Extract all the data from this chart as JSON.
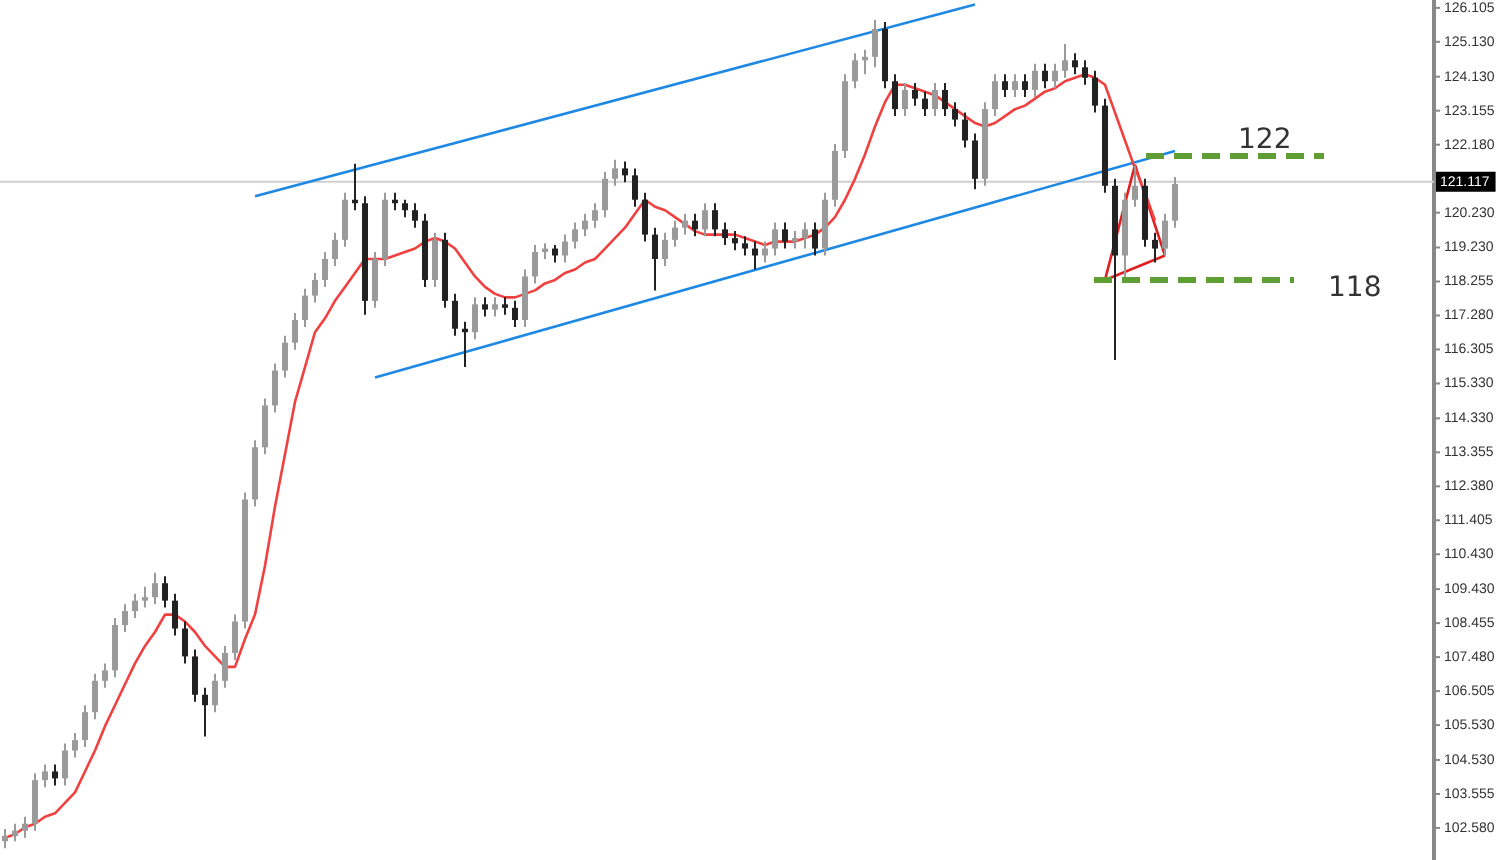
{
  "chart_data": {
    "type": "candlestick",
    "tick_labels": "y",
    "grid": false,
    "categories": [
      null,
      null,
      null,
      null,
      null,
      null,
      null,
      null,
      null,
      null,
      null,
      null,
      null,
      null,
      null,
      null,
      null,
      null,
      null,
      null,
      null,
      null,
      null,
      null,
      null,
      null,
      null,
      null,
      null,
      null,
      null,
      null,
      null,
      null,
      null,
      null,
      null,
      null,
      null,
      null,
      null,
      null,
      null,
      null,
      null,
      null,
      null,
      null,
      null,
      null,
      null,
      null,
      null,
      null,
      null,
      null,
      null,
      null,
      null,
      null,
      null,
      null,
      null,
      null,
      null,
      null,
      null,
      null,
      null,
      null,
      null,
      null,
      null,
      null,
      null,
      null,
      null,
      null,
      null,
      null,
      null,
      null,
      null,
      null,
      null,
      null,
      null,
      null,
      null,
      null,
      null,
      null,
      null,
      null,
      null,
      null,
      null,
      null,
      null,
      null,
      null,
      null,
      null,
      null,
      null,
      null,
      null,
      null,
      null,
      null,
      null,
      null,
      null,
      null,
      null,
      null,
      null,
      null
    ],
    "ohlc": [
      [
        102.2,
        102.55,
        102.0,
        102.35
      ],
      [
        102.35,
        102.7,
        102.2,
        102.5
      ],
      [
        102.5,
        102.9,
        102.3,
        102.7
      ],
      [
        102.7,
        104.15,
        102.5,
        103.95
      ],
      [
        103.95,
        104.4,
        103.75,
        104.2
      ],
      [
        104.2,
        104.4,
        103.8,
        104.0
      ],
      [
        104.0,
        105.0,
        103.8,
        104.8
      ],
      [
        104.8,
        105.3,
        104.6,
        105.1
      ],
      [
        105.1,
        106.1,
        104.9,
        105.9
      ],
      [
        105.9,
        107.0,
        105.7,
        106.8
      ],
      [
        106.8,
        107.3,
        106.6,
        107.1
      ],
      [
        107.1,
        108.6,
        106.9,
        108.4
      ],
      [
        108.4,
        109.0,
        108.2,
        108.8
      ],
      [
        108.8,
        109.3,
        108.6,
        109.1
      ],
      [
        109.1,
        109.5,
        108.9,
        109.2
      ],
      [
        109.2,
        109.9,
        109.0,
        109.6
      ],
      [
        109.6,
        109.8,
        108.9,
        109.1
      ],
      [
        109.1,
        109.3,
        108.1,
        108.3
      ],
      [
        108.3,
        108.5,
        107.3,
        107.5
      ],
      [
        107.5,
        107.7,
        106.2,
        106.4
      ],
      [
        106.4,
        106.6,
        105.2,
        106.1
      ],
      [
        106.1,
        107.0,
        105.9,
        106.8
      ],
      [
        106.8,
        107.8,
        106.6,
        107.6
      ],
      [
        107.6,
        108.7,
        107.4,
        108.5
      ],
      [
        108.5,
        112.2,
        108.3,
        112.0
      ],
      [
        112.0,
        113.7,
        111.8,
        113.5
      ],
      [
        113.5,
        114.9,
        113.3,
        114.7
      ],
      [
        114.7,
        115.9,
        114.5,
        115.7
      ],
      [
        115.7,
        116.7,
        115.5,
        116.5
      ],
      [
        116.5,
        117.35,
        116.3,
        117.15
      ],
      [
        117.15,
        118.05,
        116.95,
        117.85
      ],
      [
        117.85,
        118.5,
        117.65,
        118.3
      ],
      [
        118.3,
        119.1,
        118.1,
        118.9
      ],
      [
        118.9,
        119.65,
        118.7,
        119.45
      ],
      [
        119.45,
        120.8,
        119.25,
        120.6
      ],
      [
        120.6,
        121.63,
        120.3,
        120.5
      ],
      [
        120.5,
        120.7,
        117.3,
        117.7
      ],
      [
        117.7,
        119.1,
        117.5,
        118.9
      ],
      [
        118.9,
        120.8,
        118.7,
        120.6
      ],
      [
        120.6,
        120.8,
        120.3,
        120.5
      ],
      [
        120.5,
        120.6,
        120.1,
        120.3
      ],
      [
        120.3,
        120.5,
        119.8,
        120.0
      ],
      [
        120.0,
        120.2,
        118.1,
        118.3
      ],
      [
        118.3,
        119.65,
        118.1,
        119.45
      ],
      [
        119.45,
        119.65,
        117.5,
        117.7
      ],
      [
        117.7,
        117.9,
        116.7,
        116.9
      ],
      [
        116.9,
        117.1,
        115.8,
        116.8
      ],
      [
        116.8,
        117.8,
        116.6,
        117.6
      ],
      [
        117.6,
        117.8,
        117.25,
        117.45
      ],
      [
        117.45,
        117.8,
        117.25,
        117.6
      ],
      [
        117.6,
        117.8,
        117.3,
        117.5
      ],
      [
        117.5,
        117.7,
        116.95,
        117.15
      ],
      [
        117.15,
        118.6,
        116.95,
        118.4
      ],
      [
        118.4,
        119.3,
        118.2,
        119.1
      ],
      [
        119.1,
        119.35,
        118.9,
        119.2
      ],
      [
        119.2,
        119.3,
        118.8,
        119.0
      ],
      [
        119.0,
        119.6,
        118.8,
        119.4
      ],
      [
        119.4,
        119.95,
        119.2,
        119.75
      ],
      [
        119.75,
        120.2,
        119.55,
        120.0
      ],
      [
        120.0,
        120.5,
        119.8,
        120.3
      ],
      [
        120.3,
        121.4,
        120.1,
        121.2
      ],
      [
        121.2,
        121.75,
        121.0,
        121.5
      ],
      [
        121.5,
        121.7,
        121.1,
        121.3
      ],
      [
        121.3,
        121.5,
        120.4,
        120.6
      ],
      [
        120.6,
        120.8,
        119.4,
        119.6
      ],
      [
        119.6,
        119.8,
        118.0,
        118.9
      ],
      [
        118.9,
        119.65,
        118.7,
        119.45
      ],
      [
        119.45,
        120.0,
        119.25,
        119.8
      ],
      [
        119.8,
        120.2,
        119.6,
        120.0
      ],
      [
        120.0,
        120.2,
        119.55,
        119.75
      ],
      [
        119.75,
        120.5,
        119.55,
        120.3
      ],
      [
        120.3,
        120.5,
        119.55,
        119.75
      ],
      [
        119.75,
        119.95,
        119.3,
        119.5
      ],
      [
        119.5,
        119.7,
        119.15,
        119.35
      ],
      [
        119.35,
        119.55,
        119.0,
        119.2
      ],
      [
        119.2,
        119.4,
        118.6,
        119.0
      ],
      [
        119.0,
        119.4,
        118.8,
        119.2
      ],
      [
        119.2,
        119.95,
        119.0,
        119.75
      ],
      [
        119.75,
        119.95,
        119.2,
        119.4
      ],
      [
        119.4,
        119.7,
        119.2,
        119.5
      ],
      [
        119.5,
        119.95,
        119.2,
        119.75
      ],
      [
        119.75,
        119.95,
        119.0,
        119.2
      ],
      [
        119.2,
        120.8,
        119.0,
        120.6
      ],
      [
        120.6,
        122.2,
        120.4,
        122.0
      ],
      [
        122.0,
        124.2,
        121.8,
        124.0
      ],
      [
        124.0,
        124.8,
        123.8,
        124.6
      ],
      [
        124.6,
        124.9,
        124.2,
        124.7
      ],
      [
        124.7,
        125.76,
        124.4,
        125.5
      ],
      [
        125.5,
        125.7,
        123.8,
        124.0
      ],
      [
        124.0,
        124.2,
        123.0,
        123.2
      ],
      [
        123.2,
        123.95,
        123.0,
        123.75
      ],
      [
        123.75,
        123.95,
        123.3,
        123.5
      ],
      [
        123.5,
        123.7,
        123.0,
        123.2
      ],
      [
        123.2,
        123.95,
        123.0,
        123.75
      ],
      [
        123.75,
        123.95,
        123.0,
        123.2
      ],
      [
        123.2,
        123.4,
        122.7,
        122.9
      ],
      [
        122.9,
        123.1,
        122.1,
        122.3
      ],
      [
        122.3,
        122.5,
        120.9,
        121.2
      ],
      [
        121.2,
        123.4,
        121.0,
        123.2
      ],
      [
        123.2,
        124.2,
        123.0,
        124.0
      ],
      [
        124.0,
        124.2,
        123.55,
        123.75
      ],
      [
        123.75,
        124.2,
        123.55,
        124.0
      ],
      [
        124.0,
        124.2,
        123.55,
        123.75
      ],
      [
        123.75,
        124.5,
        123.55,
        124.3
      ],
      [
        124.3,
        124.5,
        123.8,
        124.0
      ],
      [
        124.0,
        124.5,
        123.8,
        124.3
      ],
      [
        124.3,
        125.07,
        124.1,
        124.6
      ],
      [
        124.6,
        124.8,
        124.2,
        124.4
      ],
      [
        124.4,
        124.6,
        123.9,
        124.1
      ],
      [
        124.1,
        124.3,
        123.1,
        123.3
      ],
      [
        123.3,
        123.5,
        120.8,
        121.0
      ],
      [
        121.0,
        121.2,
        116.0,
        119.0
      ],
      [
        119.0,
        120.8,
        118.3,
        120.6
      ],
      [
        120.6,
        121.57,
        120.4,
        121.0
      ],
      [
        121.0,
        121.2,
        119.25,
        119.45
      ],
      [
        119.45,
        119.65,
        118.8,
        119.2
      ],
      [
        119.2,
        120.2,
        119.0,
        120.0
      ],
      [
        120.0,
        121.25,
        119.8,
        121.05
      ]
    ],
    "colors": [
      "#9a9a9a",
      "#9a9a9a",
      "#9a9a9a",
      "#9a9a9a",
      "#9a9a9a",
      "#222222",
      "#9a9a9a",
      "#9a9a9a",
      "#9a9a9a",
      "#9a9a9a",
      "#9a9a9a",
      "#9a9a9a",
      "#9a9a9a",
      "#9a9a9a",
      "#9a9a9a",
      "#9a9a9a",
      "#222222",
      "#222222",
      "#222222",
      "#222222",
      "#222222",
      "#9a9a9a",
      "#9a9a9a",
      "#9a9a9a",
      "#9a9a9a",
      "#9a9a9a",
      "#9a9a9a",
      "#9a9a9a",
      "#9a9a9a",
      "#9a9a9a",
      "#9a9a9a",
      "#9a9a9a",
      "#9a9a9a",
      "#9a9a9a",
      "#9a9a9a",
      "#222222",
      "#222222",
      "#9a9a9a",
      "#9a9a9a",
      "#222222",
      "#222222",
      "#222222",
      "#222222",
      "#9a9a9a",
      "#222222",
      "#222222",
      "#222222",
      "#9a9a9a",
      "#222222",
      "#9a9a9a",
      "#222222",
      "#222222",
      "#9a9a9a",
      "#9a9a9a",
      "#9a9a9a",
      "#222222",
      "#9a9a9a",
      "#9a9a9a",
      "#9a9a9a",
      "#9a9a9a",
      "#9a9a9a",
      "#9a9a9a",
      "#222222",
      "#222222",
      "#222222",
      "#222222",
      "#9a9a9a",
      "#9a9a9a",
      "#9a9a9a",
      "#222222",
      "#9a9a9a",
      "#222222",
      "#222222",
      "#222222",
      "#222222",
      "#222222",
      "#9a9a9a",
      "#9a9a9a",
      "#222222",
      "#9a9a9a",
      "#9a9a9a",
      "#222222",
      "#9a9a9a",
      "#9a9a9a",
      "#9a9a9a",
      "#9a9a9a",
      "#9a9a9a",
      "#9a9a9a",
      "#222222",
      "#222222",
      "#9a9a9a",
      "#222222",
      "#222222",
      "#9a9a9a",
      "#222222",
      "#222222",
      "#222222",
      "#222222",
      "#9a9a9a",
      "#9a9a9a",
      "#222222",
      "#9a9a9a",
      "#222222",
      "#9a9a9a",
      "#222222",
      "#9a9a9a",
      "#9a9a9a",
      "#222222",
      "#222222",
      "#222222",
      "#222222",
      "#222222",
      "#9a9a9a",
      "#9a9a9a",
      "#222222",
      "#222222",
      "#9a9a9a",
      "#9a9a9a"
    ],
    "ylim": [
      101.66,
      126.33
    ],
    "yticks": [
      {
        "value": 102.58,
        "label": "102.580"
      },
      {
        "value": 103.555,
        "label": "103.555"
      },
      {
        "value": 104.53,
        "label": "104.530"
      },
      {
        "value": 105.53,
        "label": "105.530"
      },
      {
        "value": 106.505,
        "label": "106.505"
      },
      {
        "value": 107.48,
        "label": "107.480"
      },
      {
        "value": 108.455,
        "label": "108.455"
      },
      {
        "value": 109.43,
        "label": "109.430"
      },
      {
        "value": 110.43,
        "label": "110.430"
      },
      {
        "value": 111.405,
        "label": "111.405"
      },
      {
        "value": 112.38,
        "label": "112.380"
      },
      {
        "value": 113.355,
        "label": "113.355"
      },
      {
        "value": 114.33,
        "label": "114.330"
      },
      {
        "value": 115.33,
        "label": "115.330"
      },
      {
        "value": 116.305,
        "label": "116.305"
      },
      {
        "value": 117.28,
        "label": "117.280"
      },
      {
        "value": 118.255,
        "label": "118.255"
      },
      {
        "value": 119.23,
        "label": "119.230"
      },
      {
        "value": 120.23,
        "label": "120.230"
      },
      {
        "value": 122.18,
        "label": "122.180"
      },
      {
        "value": 123.155,
        "label": "123.155"
      },
      {
        "value": 124.13,
        "label": "124.130"
      },
      {
        "value": 125.13,
        "label": "125.130"
      },
      {
        "value": 126.105,
        "label": "126.105"
      }
    ],
    "series": [
      {
        "type": "line",
        "color": "#f04040",
        "values": [
          102.3,
          102.4,
          102.6,
          102.7,
          102.9,
          103.0,
          103.3,
          103.6,
          104.2,
          104.8,
          105.5,
          106.1,
          106.7,
          107.3,
          107.8,
          108.2,
          108.7,
          108.7,
          108.5,
          108.2,
          107.8,
          107.5,
          107.2,
          107.2,
          108.0,
          108.7,
          110.1,
          111.8,
          113.3,
          114.8,
          115.8,
          116.8,
          117.2,
          117.7,
          118.1,
          118.5,
          118.9,
          118.9,
          118.9,
          119.0,
          119.1,
          119.2,
          119.4,
          119.5,
          119.4,
          119.2,
          118.8,
          118.4,
          118.1,
          117.9,
          117.8,
          117.8,
          117.9,
          118.0,
          118.2,
          118.3,
          118.5,
          118.6,
          118.8,
          118.9,
          119.2,
          119.5,
          119.8,
          120.2,
          120.6,
          120.4,
          120.3,
          120.1,
          119.9,
          119.7,
          119.6,
          119.6,
          119.6,
          119.6,
          119.5,
          119.4,
          119.3,
          119.4,
          119.4,
          119.4,
          119.5,
          119.6,
          119.8,
          120.1,
          120.6,
          121.2,
          121.9,
          122.7,
          123.4,
          123.9,
          123.9,
          123.8,
          123.7,
          123.6,
          123.4,
          123.2,
          123.0,
          122.8,
          122.7,
          122.8,
          123.0,
          123.2,
          123.3,
          123.5,
          123.7,
          123.8,
          124.0,
          124.1,
          124.2,
          124.1,
          123.9,
          123.1,
          122.3,
          121.5,
          120.8,
          120.0,
          null,
          null
        ]
      },
      {
        "type": "line",
        "color": "#1e88e5",
        "values": [
          null,
          null,
          null,
          null,
          null,
          null,
          null,
          null,
          null,
          null,
          null,
          null,
          null,
          null,
          null,
          null,
          null,
          null,
          null,
          null,
          null,
          null,
          null,
          null,
          null,
          120.7,
          null,
          null,
          null,
          null,
          null,
          null,
          null,
          null,
          null,
          null,
          null,
          null,
          null,
          null,
          null,
          null,
          null,
          null,
          null,
          null,
          null,
          null,
          null,
          null,
          null,
          null,
          null,
          null,
          null,
          null,
          null,
          null,
          null,
          null,
          null,
          null,
          null,
          null,
          null,
          null,
          null,
          null,
          null,
          null,
          null,
          null,
          null,
          null,
          null,
          null,
          null,
          null,
          null,
          null,
          null,
          null,
          null,
          null,
          null,
          null,
          null,
          null,
          null,
          null,
          null,
          null,
          null,
          null,
          null,
          null,
          null,
          126.2,
          null,
          null,
          null,
          null,
          null,
          null,
          null,
          null,
          null,
          null,
          null,
          null,
          null,
          null,
          null,
          null,
          null,
          null,
          null,
          null
        ]
      },
      {
        "type": "line",
        "color": "#1e88e5",
        "values": [
          null,
          null,
          null,
          null,
          null,
          null,
          null,
          null,
          null,
          null,
          null,
          null,
          null,
          null,
          null,
          null,
          null,
          null,
          null,
          null,
          null,
          null,
          null,
          null,
          null,
          null,
          null,
          null,
          null,
          null,
          null,
          null,
          null,
          null,
          null,
          null,
          null,
          115.5,
          null,
          null,
          null,
          null,
          null,
          null,
          null,
          null,
          null,
          null,
          null,
          null,
          null,
          null,
          null,
          null,
          null,
          null,
          null,
          null,
          null,
          null,
          null,
          null,
          null,
          null,
          null,
          null,
          null,
          null,
          null,
          null,
          null,
          null,
          null,
          null,
          null,
          null,
          null,
          null,
          null,
          null,
          null,
          null,
          null,
          null,
          null,
          null,
          null,
          null,
          null,
          null,
          null,
          null,
          null,
          null,
          null,
          null,
          null,
          null,
          null,
          null,
          null,
          null,
          null,
          null,
          null,
          null,
          null,
          null,
          null,
          null,
          null,
          null,
          null,
          null,
          null,
          null,
          null,
          122.0
        ]
      },
      {
        "type": "line",
        "color": "#e02020",
        "values": [
          null,
          null,
          null,
          null,
          null,
          null,
          null,
          null,
          null,
          null,
          null,
          null,
          null,
          null,
          null,
          null,
          null,
          null,
          null,
          null,
          null,
          null,
          null,
          null,
          null,
          null,
          null,
          null,
          null,
          null,
          null,
          null,
          null,
          null,
          null,
          null,
          null,
          null,
          null,
          null,
          null,
          null,
          null,
          null,
          null,
          null,
          null,
          null,
          null,
          null,
          null,
          null,
          null,
          null,
          null,
          null,
          null,
          null,
          null,
          null,
          null,
          null,
          null,
          null,
          null,
          null,
          null,
          null,
          null,
          null,
          null,
          null,
          null,
          null,
          null,
          null,
          null,
          null,
          null,
          null,
          null,
          null,
          null,
          null,
          null,
          null,
          null,
          null,
          null,
          null,
          null,
          null,
          null,
          null,
          null,
          null,
          null,
          null,
          null,
          null,
          null,
          null,
          null,
          null,
          null,
          null,
          null,
          null,
          null,
          null,
          118.3,
          null,
          null,
          121.6,
          null,
          null,
          null,
          null
        ]
      },
      {
        "type": "line",
        "color": "#e02020",
        "values": [
          null,
          null,
          null,
          null,
          null,
          null,
          null,
          null,
          null,
          null,
          null,
          null,
          null,
          null,
          null,
          null,
          null,
          null,
          null,
          null,
          null,
          null,
          null,
          null,
          null,
          null,
          null,
          null,
          null,
          null,
          null,
          null,
          null,
          null,
          null,
          null,
          null,
          null,
          null,
          null,
          null,
          null,
          null,
          null,
          null,
          null,
          null,
          null,
          null,
          null,
          null,
          null,
          null,
          null,
          null,
          null,
          null,
          null,
          null,
          null,
          null,
          null,
          null,
          null,
          null,
          null,
          null,
          null,
          null,
          null,
          null,
          null,
          null,
          null,
          null,
          null,
          null,
          null,
          null,
          null,
          null,
          null,
          null,
          null,
          null,
          null,
          null,
          null,
          null,
          null,
          null,
          null,
          null,
          null,
          null,
          null,
          null,
          null,
          null,
          null,
          null,
          null,
          null,
          null,
          null,
          null,
          null,
          null,
          null,
          null,
          null,
          null,
          null,
          121.6,
          null,
          null,
          119.0,
          null
        ]
      },
      {
        "type": "line",
        "color": "#e02020",
        "values": [
          null,
          null,
          null,
          null,
          null,
          null,
          null,
          null,
          null,
          null,
          null,
          null,
          null,
          null,
          null,
          null,
          null,
          null,
          null,
          null,
          null,
          null,
          null,
          null,
          null,
          null,
          null,
          null,
          null,
          null,
          null,
          null,
          null,
          null,
          null,
          null,
          null,
          null,
          null,
          null,
          null,
          null,
          null,
          null,
          null,
          null,
          null,
          null,
          null,
          null,
          null,
          null,
          null,
          null,
          null,
          null,
          null,
          null,
          null,
          null,
          null,
          null,
          null,
          null,
          null,
          null,
          null,
          null,
          null,
          null,
          null,
          null,
          null,
          null,
          null,
          null,
          null,
          null,
          null,
          null,
          null,
          null,
          null,
          null,
          null,
          null,
          null,
          null,
          null,
          null,
          null,
          null,
          null,
          null,
          null,
          null,
          null,
          null,
          null,
          null,
          null,
          null,
          null,
          null,
          null,
          null,
          null,
          null,
          null,
          null,
          118.3,
          null,
          null,
          null,
          null,
          null,
          119.0,
          null
        ]
      }
    ],
    "ref_lines": [
      {
        "axis": "y",
        "value": 121.117,
        "label": "121.117",
        "color": "#d0d0d0"
      }
    ],
    "annotations": [
      "122",
      "118"
    ]
  }
}
